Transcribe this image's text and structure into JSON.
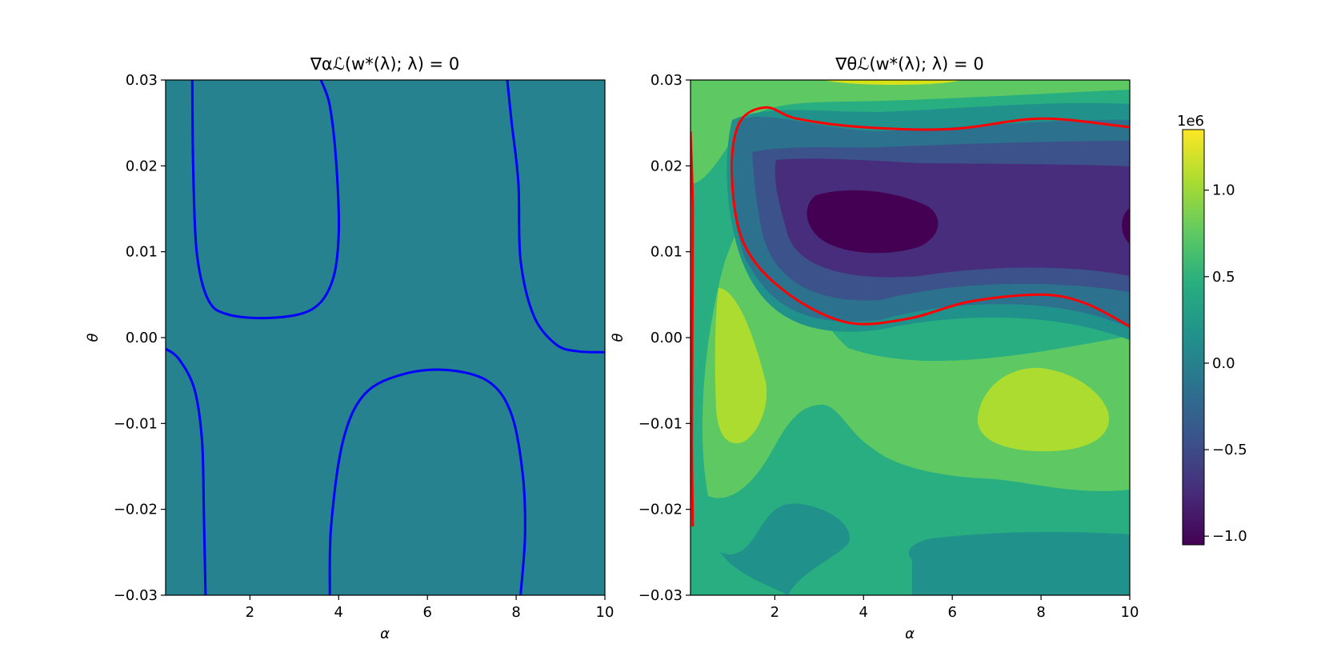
{
  "chart_data": [
    {
      "type": "contour",
      "title": "∇αℒ(w*(λ); λ) = 0",
      "xlabel": "α",
      "ylabel": "θ",
      "xlim": [
        0.1,
        10
      ],
      "ylim": [
        -0.03,
        0.03
      ],
      "xticks": [
        "2",
        "4",
        "6",
        "8",
        "10"
      ],
      "yticks": [
        "0.03",
        "0.02",
        "0.01",
        "0.00",
        "−0.01",
        "−0.02",
        "−0.03"
      ],
      "fill_color": "#26828e",
      "zero_contour_color": "#0000ff",
      "zero_contour": [
        [
          [
            0.1,
            -0.0013
          ],
          [
            0.4,
            -0.0025
          ],
          [
            0.75,
            -0.006
          ],
          [
            0.92,
            -0.012
          ],
          [
            0.96,
            -0.02
          ],
          [
            1.0,
            -0.03
          ]
        ],
        [
          [
            0.7,
            0.03
          ],
          [
            0.72,
            0.02
          ],
          [
            0.8,
            0.01
          ],
          [
            1.05,
            0.0045
          ],
          [
            1.5,
            0.0027
          ],
          [
            2.5,
            0.0023
          ],
          [
            3.4,
            0.0033
          ],
          [
            3.85,
            0.0065
          ],
          [
            4.0,
            0.012
          ],
          [
            3.95,
            0.02
          ],
          [
            3.8,
            0.027
          ],
          [
            3.6,
            0.03
          ]
        ],
        [
          [
            3.8,
            -0.03
          ],
          [
            3.83,
            -0.022
          ],
          [
            4.1,
            -0.012
          ],
          [
            4.6,
            -0.0065
          ],
          [
            5.5,
            -0.0042
          ],
          [
            6.5,
            -0.0038
          ],
          [
            7.4,
            -0.0052
          ],
          [
            7.9,
            -0.009
          ],
          [
            8.15,
            -0.016
          ],
          [
            8.2,
            -0.023
          ],
          [
            8.1,
            -0.03
          ]
        ],
        [
          [
            7.8,
            0.03
          ],
          [
            7.9,
            0.025
          ],
          [
            8.05,
            0.018
          ],
          [
            8.1,
            0.009
          ],
          [
            8.4,
            0.0025
          ],
          [
            8.9,
            -0.0008
          ],
          [
            9.4,
            -0.0016
          ],
          [
            10,
            -0.0017
          ]
        ]
      ]
    },
    {
      "type": "contour",
      "title": "∇θℒ(w*(λ); λ) = 0",
      "xlabel": "α",
      "ylabel": "θ",
      "xlim": [
        0.1,
        10
      ],
      "ylim": [
        -0.03,
        0.03
      ],
      "xticks": [
        "2",
        "4",
        "6",
        "8",
        "10"
      ],
      "yticks": [
        "0.03",
        "0.02",
        "0.01",
        "0.00",
        "−0.01",
        "−0.02",
        "−0.03"
      ],
      "colormap": "viridis",
      "zero_contour_color": "#ff0000",
      "zero_contour": [
        [
          [
            0.1,
            0.024
          ],
          [
            0.15,
            0.015
          ],
          [
            0.14,
            0.0
          ],
          [
            0.13,
            -0.012
          ],
          [
            0.15,
            -0.022
          ]
        ],
        [
          [
            10,
            0.0245
          ],
          [
            8.0,
            0.0255
          ],
          [
            6.0,
            0.0243
          ],
          [
            4.0,
            0.0245
          ],
          [
            2.5,
            0.0255
          ],
          [
            1.8,
            0.0268
          ],
          [
            1.2,
            0.025
          ],
          [
            1.03,
            0.019
          ],
          [
            1.3,
            0.011
          ],
          [
            2.2,
            0.0055
          ],
          [
            3.6,
            0.0018
          ],
          [
            5.0,
            0.0022
          ],
          [
            6.4,
            0.0042
          ],
          [
            8.0,
            0.005
          ],
          [
            9.0,
            0.004
          ],
          [
            10,
            0.0013
          ]
        ]
      ]
    }
  ],
  "colorbar": {
    "label": "1e6",
    "range": [
      -1.05,
      1.35
    ],
    "ticks": [
      "1.0",
      "0.5",
      "0.0",
      "−0.5",
      "−1.0"
    ],
    "tick_values": [
      1.0,
      0.5,
      0.0,
      -0.5,
      -1.0
    ]
  }
}
